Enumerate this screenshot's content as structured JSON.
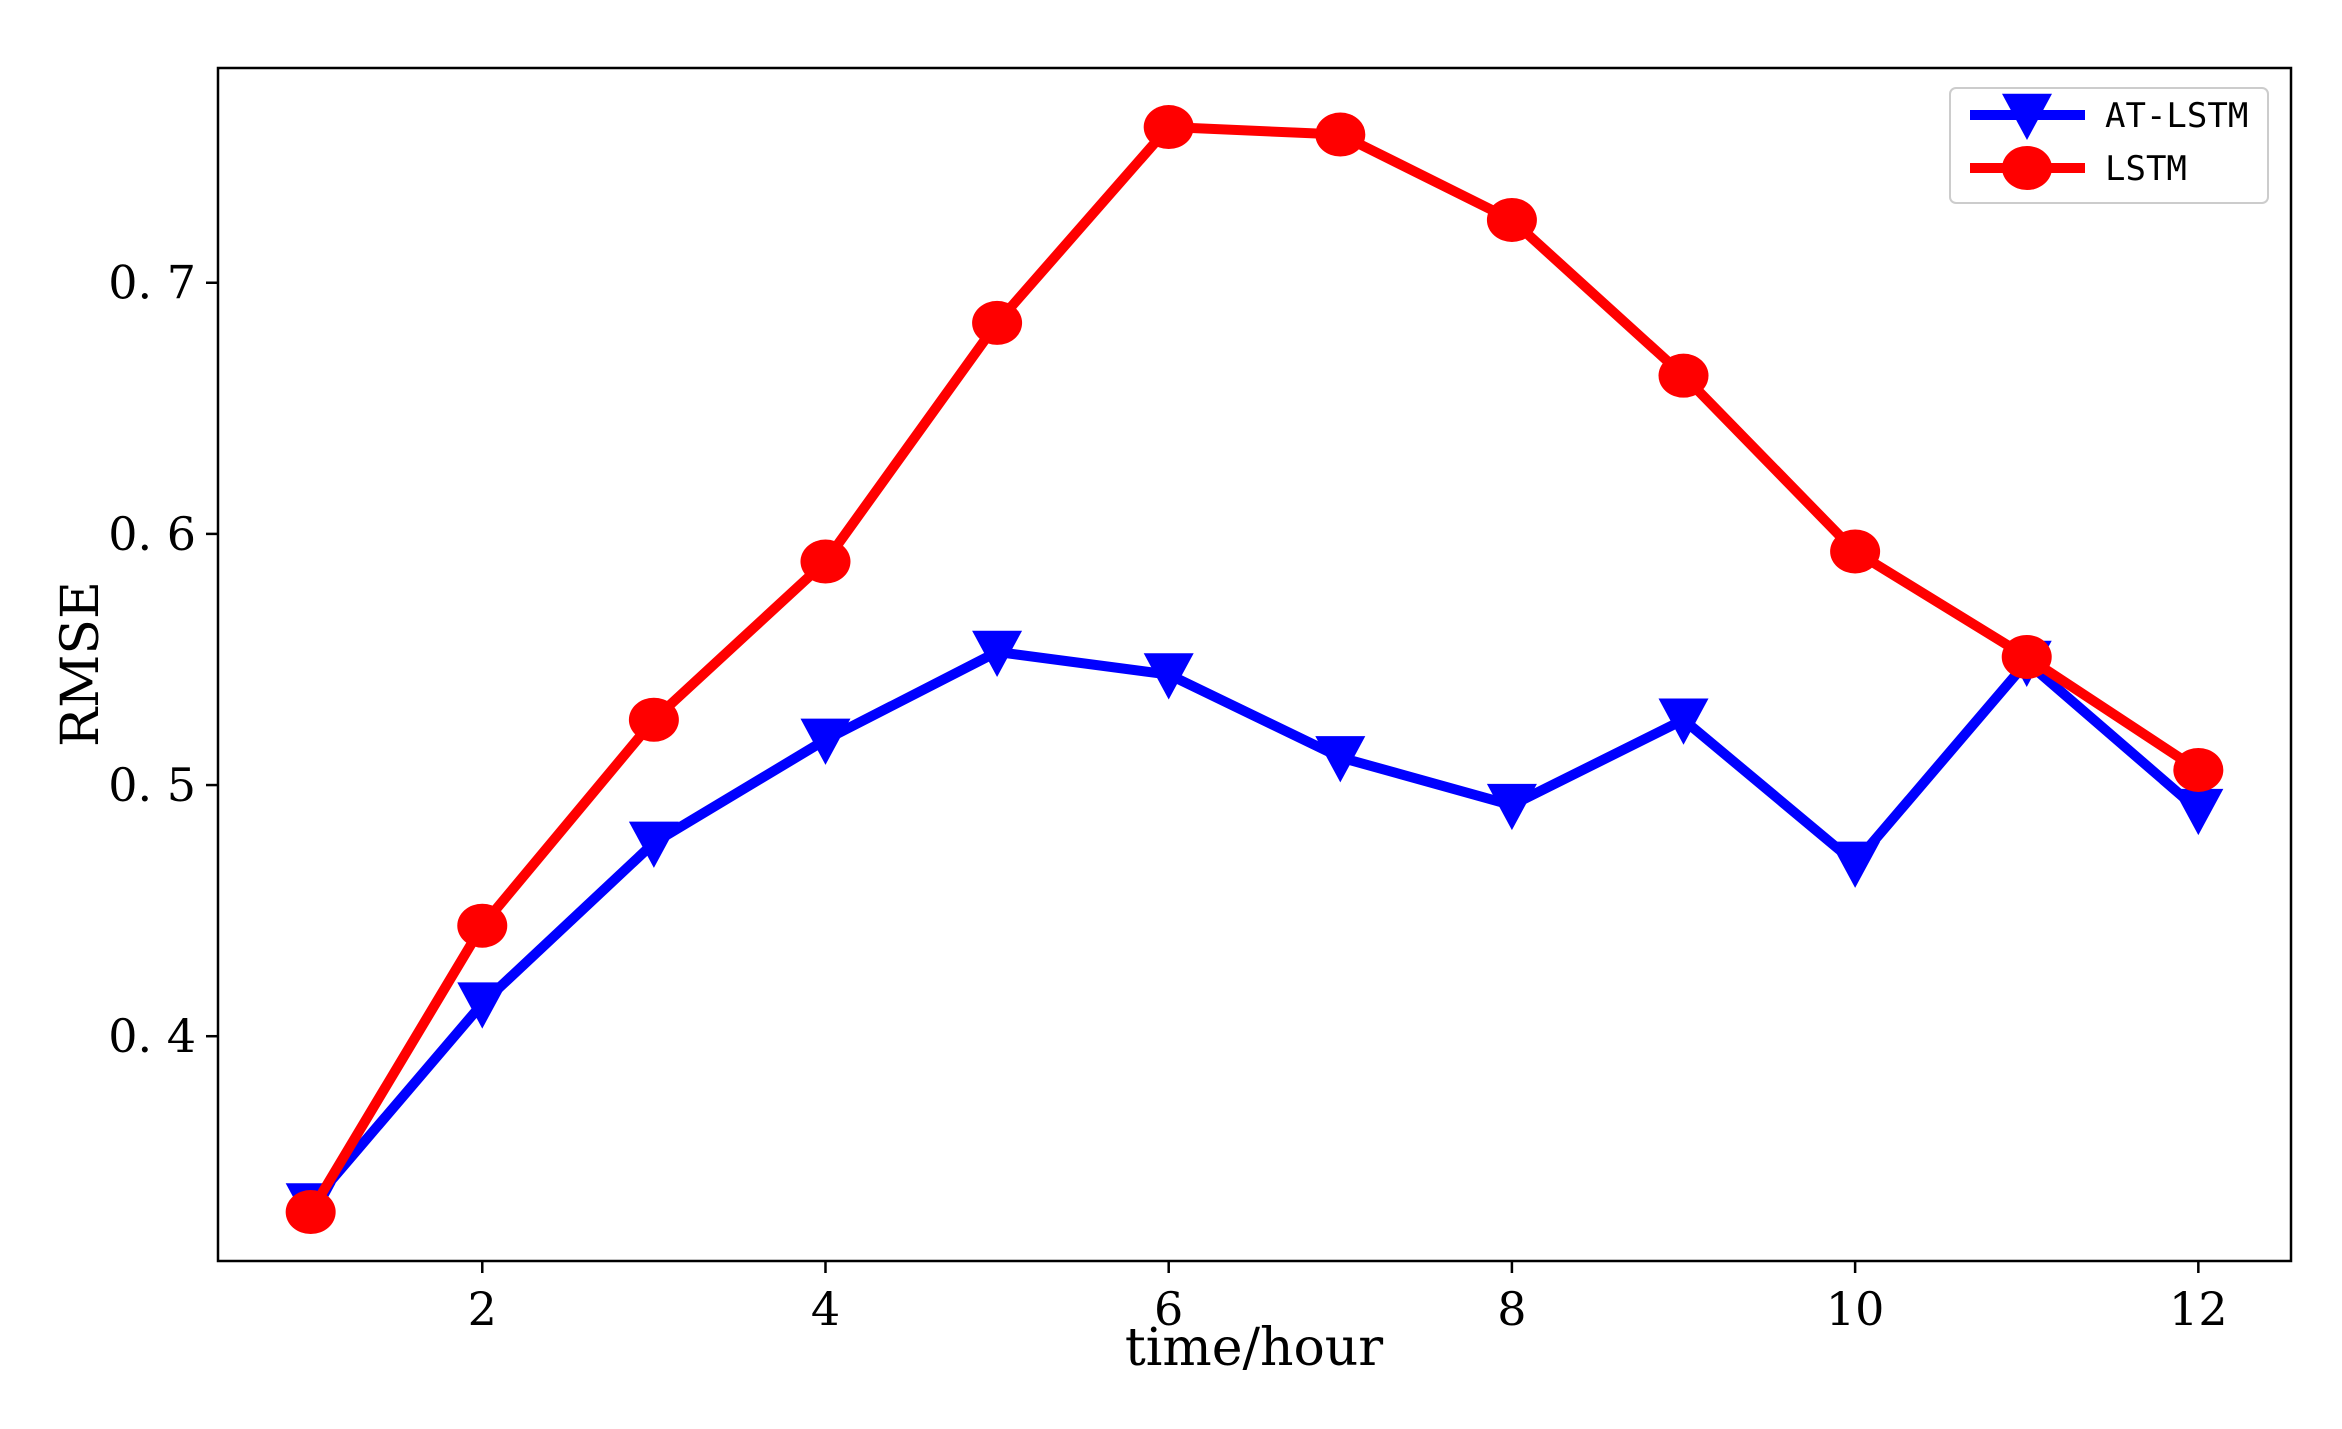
{
  "chart_data": {
    "type": "line",
    "title": "",
    "xlabel": "time/hour",
    "ylabel": "RMSE",
    "x": [
      1,
      2,
      3,
      4,
      5,
      6,
      7,
      8,
      9,
      10,
      11,
      12
    ],
    "xlim": [
      0.46,
      12.54
    ],
    "ylim": [
      0.3105,
      0.7855
    ],
    "xticks": [
      2,
      4,
      6,
      8,
      10,
      12
    ],
    "xtick_labels": [
      "2",
      "4",
      "6",
      "8",
      "10",
      "12"
    ],
    "yticks": [
      0.4,
      0.5,
      0.6,
      0.7
    ],
    "ytick_labels": [
      "0. 4",
      "0. 5",
      "0. 6",
      "0. 7"
    ],
    "grid": false,
    "legend_position": "top-right",
    "series": [
      {
        "name": "AT-LSTM",
        "color": "#0000ff",
        "marker": "triangle-down",
        "values": [
          0.333,
          0.413,
          0.477,
          0.518,
          0.553,
          0.544,
          0.511,
          0.492,
          0.526,
          0.469,
          0.549,
          0.49
        ]
      },
      {
        "name": "LSTM",
        "color": "#ff0000",
        "marker": "circle",
        "values": [
          0.33,
          0.444,
          0.526,
          0.589,
          0.684,
          0.762,
          0.759,
          0.725,
          0.663,
          0.593,
          0.551,
          0.506
        ]
      }
    ]
  }
}
